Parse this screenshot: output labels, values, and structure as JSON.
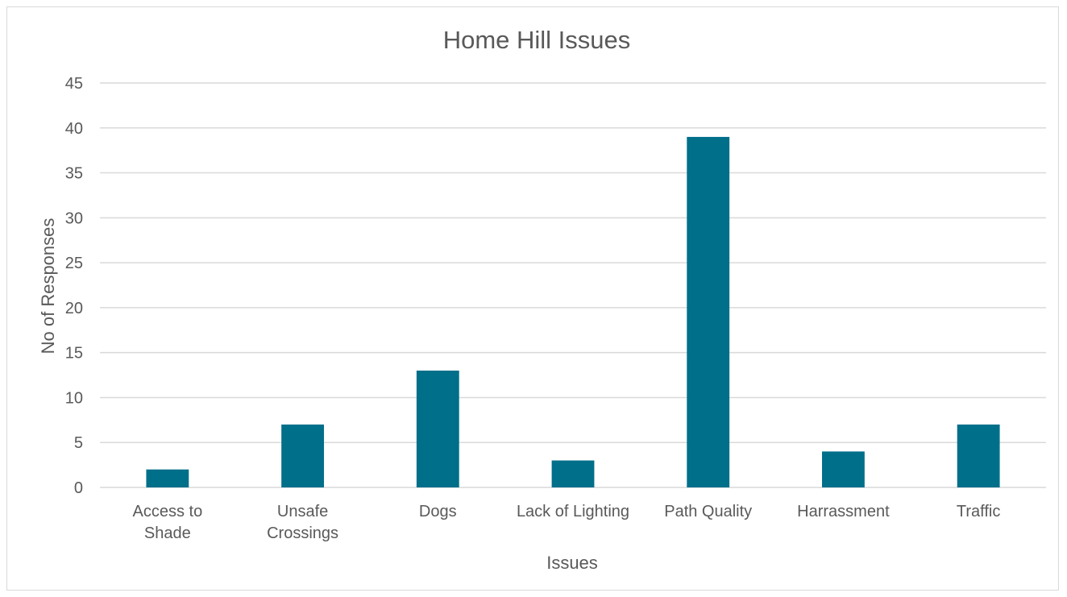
{
  "chart_data": {
    "type": "bar",
    "title": "Home Hill Issues",
    "xlabel": "Issues",
    "ylabel": "No of Responses",
    "categories": [
      [
        "Access to",
        "Shade"
      ],
      [
        "Unsafe",
        "Crossings"
      ],
      [
        "Dogs"
      ],
      [
        "Lack of Lighting"
      ],
      [
        "Path Quality"
      ],
      [
        "Harrassment"
      ],
      [
        "Traffic"
      ]
    ],
    "values": [
      2,
      7,
      13,
      3,
      39,
      4,
      7
    ],
    "ylim": [
      0,
      45
    ],
    "yticks": [
      0,
      5,
      10,
      15,
      20,
      25,
      30,
      35,
      40,
      45
    ],
    "grid": true,
    "legend": "none",
    "bar_color": "#006F8A"
  }
}
